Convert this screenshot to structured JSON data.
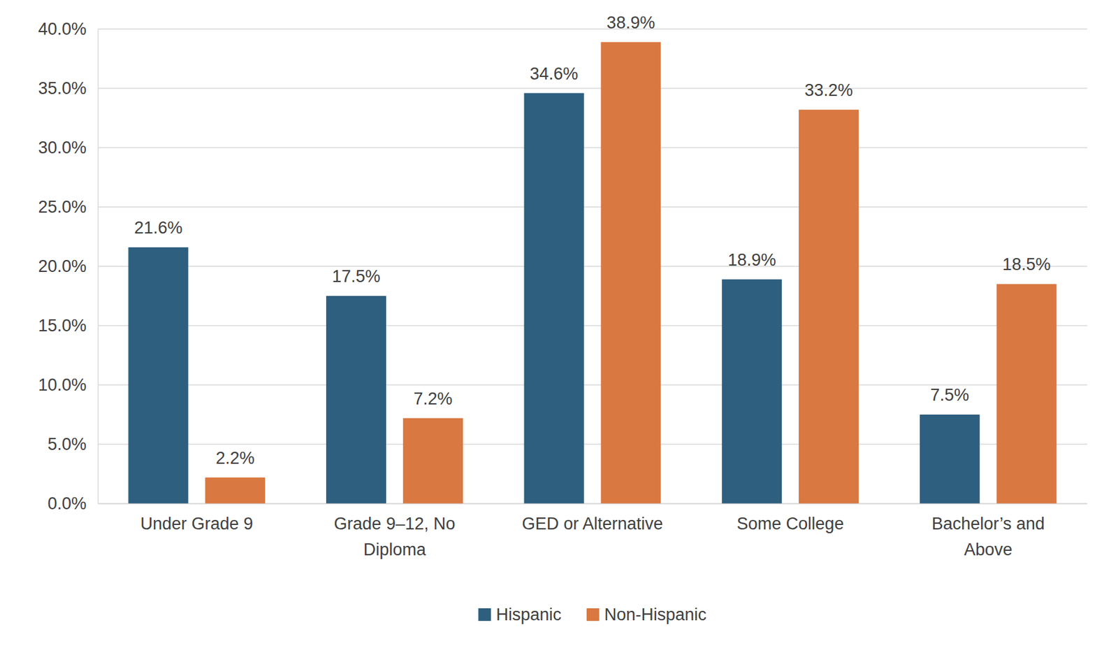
{
  "chart_data": {
    "type": "bar",
    "categories": [
      "Under Grade 9",
      "Grade 9–12, No Diploma",
      "GED or Alternative",
      "Some College",
      "Bachelor’s and Above"
    ],
    "series": [
      {
        "name": "Hispanic",
        "color": "#2e5f7f",
        "values": [
          21.6,
          17.5,
          34.6,
          18.9,
          7.5
        ],
        "value_labels": [
          "21.6%",
          "17.5%",
          "34.6%",
          "18.9%",
          "7.5%"
        ]
      },
      {
        "name": "Non-Hispanic",
        "color": "#d97841",
        "values": [
          2.2,
          7.2,
          38.9,
          33.2,
          18.5
        ],
        "value_labels": [
          "2.2%",
          "7.2%",
          "38.9%",
          "33.2%",
          "18.5%"
        ]
      }
    ],
    "ylim": [
      0,
      40
    ],
    "yticks": [
      {
        "value": 0,
        "label": "0.0%"
      },
      {
        "value": 5,
        "label": "5.0%"
      },
      {
        "value": 10,
        "label": "10.0%"
      },
      {
        "value": 15,
        "label": "15.0%"
      },
      {
        "value": 20,
        "label": "20.0%"
      },
      {
        "value": 25,
        "label": "25.0%"
      },
      {
        "value": 30,
        "label": "30.0%"
      },
      {
        "value": 35,
        "label": "35.0%"
      },
      {
        "value": 40,
        "label": "40.0%"
      }
    ],
    "grid": true,
    "data_labels": true,
    "legend": "bottom"
  }
}
